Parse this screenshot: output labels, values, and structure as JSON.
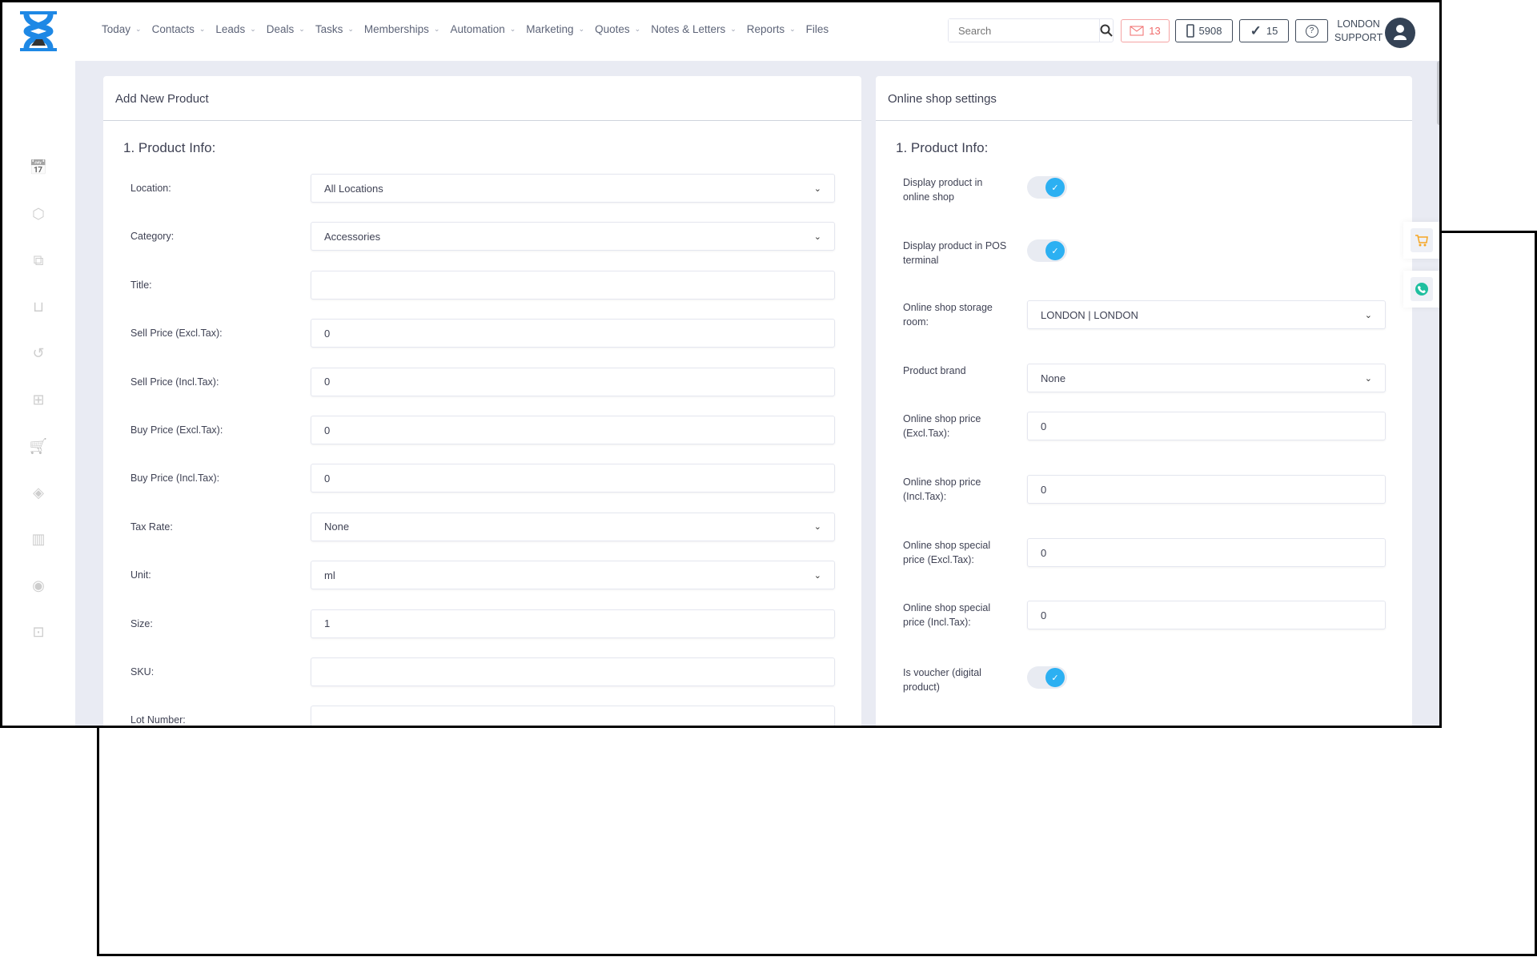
{
  "nav": {
    "items": [
      {
        "label": "Today",
        "dropdown": true
      },
      {
        "label": "Contacts",
        "dropdown": true
      },
      {
        "label": "Leads",
        "dropdown": true
      },
      {
        "label": "Deals",
        "dropdown": true
      },
      {
        "label": "Tasks",
        "dropdown": true
      },
      {
        "label": "Memberships",
        "dropdown": true
      },
      {
        "label": "Automation",
        "dropdown": true
      },
      {
        "label": "Marketing",
        "dropdown": true
      },
      {
        "label": "Quotes",
        "dropdown": true
      },
      {
        "label": "Notes & Letters",
        "dropdown": true
      },
      {
        "label": "Reports",
        "dropdown": true
      },
      {
        "label": "Files",
        "dropdown": false
      }
    ]
  },
  "header": {
    "search_placeholder": "Search",
    "mail_count": "13",
    "phone_count": "5908",
    "tasks_count": "15",
    "user_line1": "LONDON",
    "user_line2": "SUPPORT"
  },
  "colors": {
    "accent": "#2cb0f2",
    "mail": "#f06b6b",
    "dark": "#344255"
  },
  "sidebar": {
    "icons": [
      "calendar-icon",
      "box-icon",
      "copy-icon",
      "inbox-icon",
      "history-icon",
      "gift-icon",
      "cart-icon",
      "tag-icon",
      "report-icon",
      "user-circle-icon",
      "lock-icon"
    ]
  },
  "left": {
    "title": "Add New Product",
    "section": "1. Product Info:",
    "fields": [
      {
        "label": "Location:",
        "value": "All Locations",
        "type": "select"
      },
      {
        "label": "Category:",
        "value": "Accessories",
        "type": "select"
      },
      {
        "label": "Title:",
        "value": "",
        "type": "input"
      },
      {
        "label": "Sell Price (Excl.Tax):",
        "value": "0",
        "type": "input"
      },
      {
        "label": "Sell Price (Incl.Tax):",
        "value": "0",
        "type": "input"
      },
      {
        "label": "Buy Price (Excl.Tax):",
        "value": "0",
        "type": "input"
      },
      {
        "label": "Buy Price (Incl.Tax):",
        "value": "0",
        "type": "input"
      },
      {
        "label": "Tax Rate:",
        "value": "None",
        "type": "select"
      },
      {
        "label": "Unit:",
        "value": "ml",
        "type": "select"
      },
      {
        "label": "Size:",
        "value": "1",
        "type": "input"
      },
      {
        "label": "SKU:",
        "value": "",
        "type": "input"
      },
      {
        "label": "Lot Number:",
        "value": "",
        "type": "input"
      }
    ]
  },
  "right": {
    "title": "Online shop settings",
    "section": "1. Product Info:",
    "fields": [
      {
        "label": "Display product in online shop",
        "type": "toggle",
        "checked": true
      },
      {
        "label": "Display product in POS terminal",
        "type": "toggle",
        "checked": true
      },
      {
        "label": "Online shop storage room:",
        "value": "LONDON | LONDON",
        "type": "select"
      },
      {
        "label": "Product brand",
        "value": "None",
        "type": "select"
      },
      {
        "label": "Online shop price (Excl.Tax):",
        "value": "0",
        "type": "input"
      },
      {
        "label": "Online shop price (Incl.Tax):",
        "value": "0",
        "type": "input"
      },
      {
        "label": "Online shop special price (Excl.Tax):",
        "value": "0",
        "type": "input"
      },
      {
        "label": "Online shop special price (Incl.Tax):",
        "value": "0",
        "type": "input"
      },
      {
        "label": "Is voucher (digital product)",
        "type": "toggle",
        "checked": true
      }
    ]
  }
}
